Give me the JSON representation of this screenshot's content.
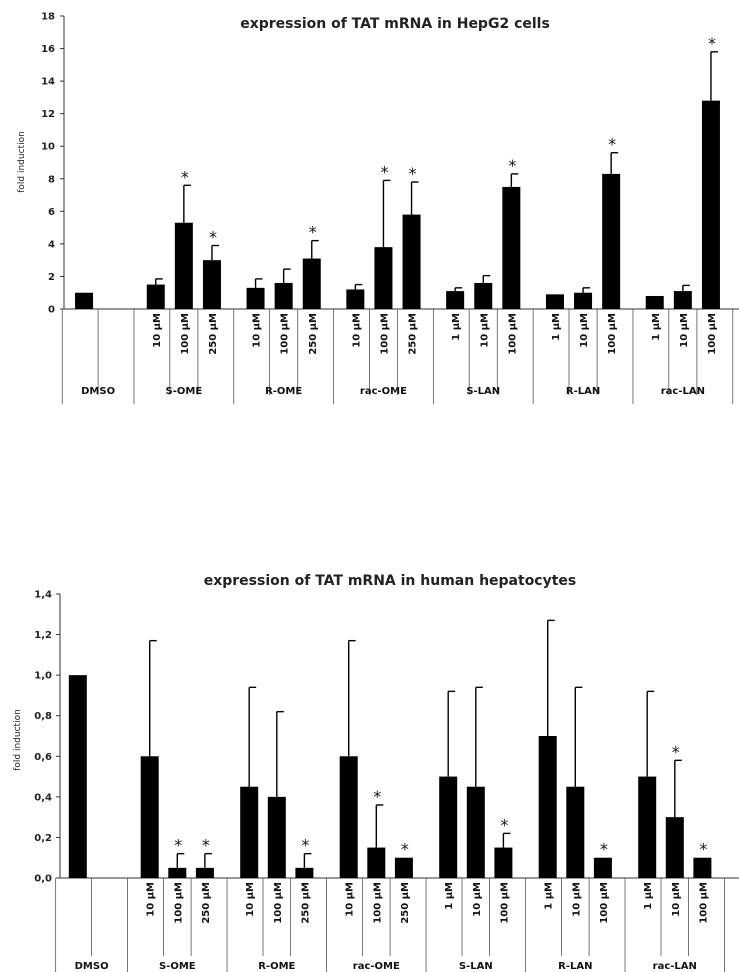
{
  "chart_data": [
    {
      "type": "bar",
      "title": "expression of TAT mRNA in HepG2 cells",
      "ylabel": "fold induction",
      "ylim": [
        0,
        18
      ],
      "yticks": [
        "0",
        "2",
        "4",
        "6",
        "8",
        "10",
        "12",
        "14",
        "16",
        "18"
      ],
      "groups": [
        {
          "label": "DMSO",
          "bars": [
            {
              "dose": "",
              "value": 1.0,
              "error": 0,
              "sig": false
            }
          ]
        },
        {
          "label": "S-OME",
          "bars": [
            {
              "dose": "10 μM",
              "value": 1.5,
              "error": 0.35,
              "sig": false
            },
            {
              "dose": "100 μM",
              "value": 5.3,
              "error": 2.3,
              "sig": true
            },
            {
              "dose": "250 μM",
              "value": 3.0,
              "error": 0.9,
              "sig": true
            }
          ]
        },
        {
          "label": "R-OME",
          "bars": [
            {
              "dose": "10 μM",
              "value": 1.3,
              "error": 0.55,
              "sig": false
            },
            {
              "dose": "100 μM",
              "value": 1.6,
              "error": 0.85,
              "sig": false
            },
            {
              "dose": "250 μM",
              "value": 3.1,
              "error": 1.1,
              "sig": true
            }
          ]
        },
        {
          "label": "rac-OME",
          "bars": [
            {
              "dose": "10 μM",
              "value": 1.2,
              "error": 0.3,
              "sig": false
            },
            {
              "dose": "100 μM",
              "value": 3.8,
              "error": 4.1,
              "sig": true
            },
            {
              "dose": "250 μM",
              "value": 5.8,
              "error": 2.0,
              "sig": true
            }
          ]
        },
        {
          "label": "S-LAN",
          "bars": [
            {
              "dose": "1 μM",
              "value": 1.1,
              "error": 0.2,
              "sig": false
            },
            {
              "dose": "10 μM",
              "value": 1.6,
              "error": 0.45,
              "sig": false
            },
            {
              "dose": "100 μM",
              "value": 7.5,
              "error": 0.8,
              "sig": true
            }
          ]
        },
        {
          "label": "R-LAN",
          "bars": [
            {
              "dose": "1 μM",
              "value": 0.9,
              "error": 0,
              "sig": false
            },
            {
              "dose": "10 μM",
              "value": 1.0,
              "error": 0.3,
              "sig": false
            },
            {
              "dose": "100 μM",
              "value": 8.3,
              "error": 1.3,
              "sig": true
            }
          ]
        },
        {
          "label": "rac-LAN",
          "bars": [
            {
              "dose": "1 μM",
              "value": 0.8,
              "error": 0,
              "sig": false
            },
            {
              "dose": "10 μM",
              "value": 1.1,
              "error": 0.35,
              "sig": false
            },
            {
              "dose": "100 μM",
              "value": 12.8,
              "error": 3.0,
              "sig": true
            }
          ]
        }
      ]
    },
    {
      "type": "bar",
      "title": "expression of TAT mRNA in human hepatocytes",
      "ylabel": "fold induction",
      "ylim": [
        0,
        1.4
      ],
      "yticks": [
        "0,0",
        "0,2",
        "0,4",
        "0,6",
        "0,8",
        "1,0",
        "1,2",
        "1,4"
      ],
      "groups": [
        {
          "label": "DMSO",
          "bars": [
            {
              "dose": "",
              "value": 1.0,
              "error": 0,
              "sig": false
            }
          ]
        },
        {
          "label": "S-OME",
          "bars": [
            {
              "dose": "10 μM",
              "value": 0.6,
              "error": 0.57,
              "sig": false
            },
            {
              "dose": "100 μM",
              "value": 0.05,
              "error": 0.07,
              "sig": true
            },
            {
              "dose": "250 μM",
              "value": 0.05,
              "error": 0.07,
              "sig": true
            }
          ]
        },
        {
          "label": "R-OME",
          "bars": [
            {
              "dose": "10 μM",
              "value": 0.45,
              "error": 0.49,
              "sig": false
            },
            {
              "dose": "100 μM",
              "value": 0.4,
              "error": 0.42,
              "sig": false
            },
            {
              "dose": "250 μM",
              "value": 0.05,
              "error": 0.07,
              "sig": true
            }
          ]
        },
        {
          "label": "rac-OME",
          "bars": [
            {
              "dose": "10 μM",
              "value": 0.6,
              "error": 0.57,
              "sig": false
            },
            {
              "dose": "100 μM",
              "value": 0.15,
              "error": 0.21,
              "sig": true
            },
            {
              "dose": "250 μM",
              "value": 0.1,
              "error": 0,
              "sig": true
            }
          ]
        },
        {
          "label": "S-LAN",
          "bars": [
            {
              "dose": "1 μM",
              "value": 0.5,
              "error": 0.42,
              "sig": false
            },
            {
              "dose": "10 μM",
              "value": 0.45,
              "error": 0.49,
              "sig": false
            },
            {
              "dose": "100 μM",
              "value": 0.15,
              "error": 0.07,
              "sig": true
            }
          ]
        },
        {
          "label": "R-LAN",
          "bars": [
            {
              "dose": "1 μM",
              "value": 0.7,
              "error": 0.57,
              "sig": false
            },
            {
              "dose": "10 μM",
              "value": 0.45,
              "error": 0.49,
              "sig": false
            },
            {
              "dose": "100 μM",
              "value": 0.1,
              "error": 0,
              "sig": true
            }
          ]
        },
        {
          "label": "rac-LAN",
          "bars": [
            {
              "dose": "1 μM",
              "value": 0.5,
              "error": 0.42,
              "sig": false
            },
            {
              "dose": "10 μM",
              "value": 0.3,
              "error": 0.28,
              "sig": true
            },
            {
              "dose": "100 μM",
              "value": 0.1,
              "error": 0,
              "sig": true
            }
          ]
        }
      ]
    }
  ]
}
